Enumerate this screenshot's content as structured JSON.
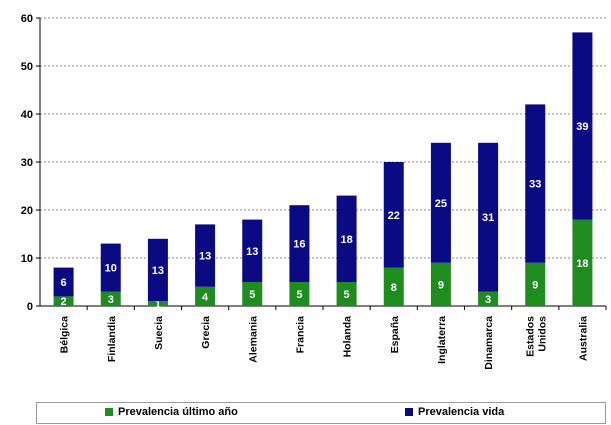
{
  "chart_data": {
    "type": "bar",
    "stacked": true,
    "title": "",
    "xlabel": "",
    "ylabel": "",
    "ylim": [
      0,
      60
    ],
    "yticks": [
      0,
      10,
      20,
      30,
      40,
      50,
      60
    ],
    "grid": "horizontal-dashed",
    "legend_position": "bottom",
    "categories": [
      "Bélgica",
      "Finlandia",
      "Suecia",
      "Grecia",
      "Alemania",
      "Francia",
      "Holanda",
      "España",
      "Inglaterra",
      "Dinamarca",
      "Estados Unidos",
      "Australia"
    ],
    "category_lines": [
      [
        "Bélgica"
      ],
      [
        "Finlandia"
      ],
      [
        "Suecia"
      ],
      [
        "Grecia"
      ],
      [
        "Alemania"
      ],
      [
        "Francia"
      ],
      [
        "Holanda"
      ],
      [
        "España"
      ],
      [
        "Inglaterra"
      ],
      [
        "Dinamarca"
      ],
      [
        "Estados",
        "Unidos"
      ],
      [
        "Australia"
      ]
    ],
    "series": [
      {
        "name": "Prevalencia último año",
        "color": "#1e8c1e",
        "values": [
          2,
          3,
          1,
          4,
          5,
          5,
          5,
          8,
          9,
          3,
          9,
          18
        ]
      },
      {
        "name": "Prevalencia vida",
        "color": "#0a0a82",
        "values": [
          6,
          10,
          13,
          13,
          13,
          16,
          18,
          22,
          25,
          31,
          33,
          39
        ]
      }
    ]
  }
}
